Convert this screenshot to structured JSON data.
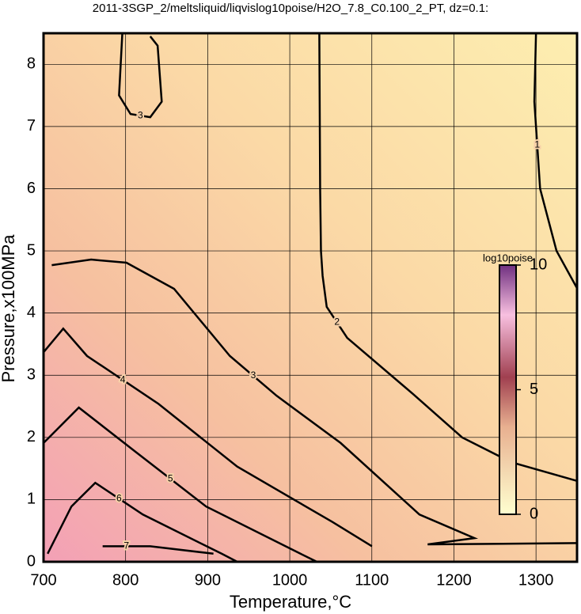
{
  "chart_data": {
    "type": "contour",
    "title": "2011-3SGP_2/meltsliquid/liqvislog10poise/H2O_7.8_C0.100_2_PT, dz=0.1:",
    "xlabel": "Temperature,°C",
    "ylabel": "Pressure,x100MPa",
    "xlim": [
      700,
      1350
    ],
    "ylim": [
      0,
      8.5
    ],
    "xticks": [
      700,
      800,
      900,
      1000,
      1100,
      1200,
      1300
    ],
    "yticks": [
      0,
      1,
      2,
      3,
      4,
      5,
      6,
      7,
      8
    ],
    "grid": true,
    "colorbar": {
      "label": "log10poise",
      "lim": [
        0,
        10
      ],
      "ticks": [
        0,
        5,
        10
      ]
    },
    "contours": [
      {
        "level": 1,
        "x": [
          1300,
          1298,
          1305,
          1325,
          1350
        ],
        "y": [
          8.5,
          7.4,
          6.0,
          5.0,
          4.4
        ]
      },
      {
        "level": 2,
        "x": [
          1036,
          1037,
          1038,
          1040,
          1045,
          1070,
          1150,
          1210,
          1270,
          1350
        ],
        "y": [
          8.5,
          6,
          5,
          4.6,
          4.1,
          3.6,
          2.7,
          2.0,
          1.6,
          1.3
        ]
      },
      {
        "level": 3,
        "x": [
          796,
          792,
          806,
          830,
          844,
          839,
          830
        ],
        "y": [
          8.5,
          7.5,
          7.2,
          7.15,
          7.4,
          8.3,
          8.45
        ]
      },
      {
        "level": 3,
        "x": [
          710,
          758,
          801,
          859,
          927,
          984,
          1062,
          1158,
          1225,
          1168,
          1350
        ],
        "y": [
          4.77,
          4.86,
          4.81,
          4.39,
          3.31,
          2.67,
          1.91,
          0.76,
          0.38,
          0.28,
          0.3
        ]
      },
      {
        "level": 4,
        "x": [
          700,
          724,
          753,
          840,
          936,
          1052,
          1100
        ],
        "y": [
          3.37,
          3.75,
          3.31,
          2.54,
          1.53,
          0.64,
          0.25
        ]
      },
      {
        "level": 5,
        "x": [
          700,
          743,
          811,
          898,
          1013,
          1033
        ],
        "y": [
          1.91,
          2.48,
          1.78,
          0.89,
          0.13,
          0
        ]
      },
      {
        "level": 6,
        "x": [
          705,
          734,
          763,
          821,
          917,
          936
        ],
        "y": [
          0.13,
          0.89,
          1.27,
          0.76,
          0.13,
          0
        ]
      },
      {
        "level": 7,
        "x": [
          772,
          830,
          907
        ],
        "y": [
          0.25,
          0.25,
          0.13
        ]
      }
    ]
  }
}
